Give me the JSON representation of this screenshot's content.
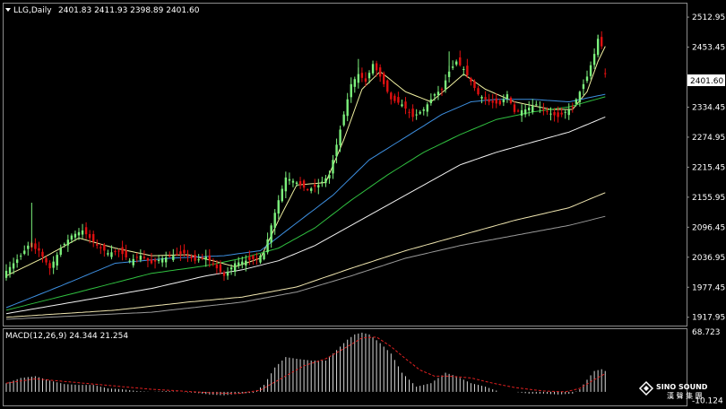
{
  "window": {
    "symbol_label": "LLG,Daily",
    "ohlc_label": "2401.83 2411.93 2398.89 2401.60"
  },
  "colors": {
    "background": "#000000",
    "frame": "#8c8c8c",
    "bull": "#7cf07c",
    "bear": "#e01010",
    "ma5": "#f0f0a0",
    "ma_blue": "#3d8fe0",
    "ma_green": "#30c040",
    "ma_white": "#f2f2f2",
    "ma_cream": "#f0e6b0",
    "ma_gray": "#9a9a9a",
    "macd_hist": "#d8d8d8",
    "macd_signal": "#e02020",
    "price_box_bg": "#ffffff",
    "price_box_fg": "#000000"
  },
  "icons": {
    "dropdown": "triangle-down-icon",
    "logo": "sino-sound-logo-icon"
  },
  "watermark": {
    "name": "SINO SOUND",
    "cn": "漢 聲 集 團"
  },
  "chart_data": [
    {
      "type": "candlestick",
      "title": "LLG,Daily",
      "ylim": [
        1905,
        2538
      ],
      "y_ticks": [
        "2512.95",
        "2453.45",
        "2334.45",
        "2274.95",
        "2215.45",
        "2155.95",
        "2096.45",
        "2036.95",
        "1977.45",
        "1917.95"
      ],
      "y_tick_values": [
        2512.95,
        2453.45,
        2334.45,
        2274.95,
        2215.45,
        2155.95,
        2096.45,
        2036.95,
        1977.45,
        1917.95
      ],
      "current_price": "2401.60",
      "current_price_value": 2401.6,
      "grid": false,
      "close_anchors": [
        [
          0,
          2010
        ],
        [
          4,
          2040
        ],
        [
          6,
          2060
        ],
        [
          9,
          2050
        ],
        [
          12,
          2015
        ],
        [
          15,
          2055
        ],
        [
          18,
          2080
        ],
        [
          21,
          2090
        ],
        [
          25,
          2060
        ],
        [
          28,
          2045
        ],
        [
          31,
          2050
        ],
        [
          34,
          2030
        ],
        [
          37,
          2040
        ],
        [
          40,
          2025
        ],
        [
          43,
          2035
        ],
        [
          46,
          2040
        ],
        [
          49,
          2045
        ],
        [
          52,
          2030
        ],
        [
          55,
          2038
        ],
        [
          58,
          2015
        ],
        [
          60,
          2000
        ],
        [
          63,
          2025
        ],
        [
          66,
          2030
        ],
        [
          69,
          2035
        ],
        [
          71,
          2045
        ],
        [
          73,
          2100
        ],
        [
          75,
          2150
        ],
        [
          77,
          2195
        ],
        [
          80,
          2185
        ],
        [
          83,
          2170
        ],
        [
          86,
          2180
        ],
        [
          89,
          2200
        ],
        [
          91,
          2260
        ],
        [
          93,
          2320
        ],
        [
          95,
          2380
        ],
        [
          97,
          2400
        ],
        [
          99,
          2385
        ],
        [
          101,
          2420
        ],
        [
          103,
          2395
        ],
        [
          106,
          2350
        ],
        [
          109,
          2340
        ],
        [
          112,
          2315
        ],
        [
          115,
          2330
        ],
        [
          118,
          2360
        ],
        [
          120,
          2370
        ],
        [
          122,
          2405
        ],
        [
          124,
          2425
        ],
        [
          126,
          2410
        ],
        [
          128,
          2385
        ],
        [
          130,
          2360
        ],
        [
          133,
          2345
        ],
        [
          136,
          2340
        ],
        [
          138,
          2360
        ],
        [
          140,
          2325
        ],
        [
          143,
          2330
        ],
        [
          146,
          2340
        ],
        [
          149,
          2325
        ],
        [
          152,
          2315
        ],
        [
          154,
          2325
        ],
        [
          156,
          2335
        ],
        [
          158,
          2365
        ],
        [
          160,
          2395
        ],
        [
          162,
          2440
        ],
        [
          163,
          2470
        ],
        [
          164,
          2455
        ],
        [
          165,
          2401.6
        ]
      ],
      "moving_averages": [
        {
          "key": "ma5",
          "anchors": [
            [
              0,
              2000
            ],
            [
              10,
              2035
            ],
            [
              20,
              2075
            ],
            [
              30,
              2055
            ],
            [
              40,
              2040
            ],
            [
              50,
              2042
            ],
            [
              58,
              2028
            ],
            [
              63,
              2018
            ],
            [
              70,
              2035
            ],
            [
              75,
              2110
            ],
            [
              80,
              2180
            ],
            [
              88,
              2185
            ],
            [
              93,
              2270
            ],
            [
              98,
              2370
            ],
            [
              103,
              2405
            ],
            [
              110,
              2365
            ],
            [
              117,
              2345
            ],
            [
              122,
              2375
            ],
            [
              126,
              2400
            ],
            [
              132,
              2370
            ],
            [
              140,
              2345
            ],
            [
              150,
              2330
            ],
            [
              156,
              2330
            ],
            [
              160,
              2365
            ],
            [
              163,
              2425
            ],
            [
              165,
              2455
            ]
          ]
        },
        {
          "key": "ma_blue",
          "anchors": [
            [
              0,
              1937
            ],
            [
              15,
              1980
            ],
            [
              30,
              2025
            ],
            [
              45,
              2035
            ],
            [
              60,
              2040
            ],
            [
              70,
              2050
            ],
            [
              80,
              2105
            ],
            [
              90,
              2160
            ],
            [
              100,
              2230
            ],
            [
              110,
              2275
            ],
            [
              120,
              2320
            ],
            [
              128,
              2345
            ],
            [
              135,
              2350
            ],
            [
              145,
              2350
            ],
            [
              155,
              2345
            ],
            [
              165,
              2360
            ]
          ]
        },
        {
          "key": "ma_green",
          "anchors": [
            [
              0,
              1932
            ],
            [
              20,
              1968
            ],
            [
              40,
              2005
            ],
            [
              55,
              2020
            ],
            [
              65,
              2035
            ],
            [
              75,
              2055
            ],
            [
              85,
              2095
            ],
            [
              95,
              2150
            ],
            [
              105,
              2200
            ],
            [
              115,
              2245
            ],
            [
              125,
              2280
            ],
            [
              135,
              2310
            ],
            [
              145,
              2325
            ],
            [
              155,
              2335
            ],
            [
              165,
              2355
            ]
          ]
        },
        {
          "key": "ma_white",
          "anchors": [
            [
              0,
              1925
            ],
            [
              20,
              1950
            ],
            [
              40,
              1975
            ],
            [
              55,
              2000
            ],
            [
              65,
              2012
            ],
            [
              75,
              2030
            ],
            [
              85,
              2060
            ],
            [
              95,
              2100
            ],
            [
              105,
              2140
            ],
            [
              115,
              2180
            ],
            [
              125,
              2220
            ],
            [
              135,
              2245
            ],
            [
              145,
              2265
            ],
            [
              155,
              2285
            ],
            [
              165,
              2315
            ]
          ]
        },
        {
          "key": "ma_cream",
          "anchors": [
            [
              0,
              1918
            ],
            [
              30,
              1932
            ],
            [
              50,
              1948
            ],
            [
              65,
              1958
            ],
            [
              80,
              1978
            ],
            [
              95,
              2015
            ],
            [
              110,
              2050
            ],
            [
              125,
              2080
            ],
            [
              140,
              2110
            ],
            [
              155,
              2135
            ],
            [
              165,
              2165
            ]
          ]
        },
        {
          "key": "ma_gray",
          "anchors": [
            [
              0,
              1914
            ],
            [
              40,
              1928
            ],
            [
              65,
              1948
            ],
            [
              80,
              1968
            ],
            [
              95,
              2000
            ],
            [
              110,
              2035
            ],
            [
              125,
              2060
            ],
            [
              140,
              2080
            ],
            [
              155,
              2100
            ],
            [
              165,
              2118
            ]
          ]
        }
      ]
    },
    {
      "type": "bar",
      "title": "MACD(12,26,9) 24.344 21.254",
      "ylim": [
        -13.5,
        71
      ],
      "y_ticks": [
        "68.723",
        "-10.124"
      ],
      "y_tick_values": [
        68.723,
        -10.124
      ],
      "histogram_anchors": [
        [
          0,
          10
        ],
        [
          4,
          16
        ],
        [
          8,
          18
        ],
        [
          12,
          13
        ],
        [
          16,
          9
        ],
        [
          20,
          8
        ],
        [
          24,
          8
        ],
        [
          28,
          4
        ],
        [
          32,
          3
        ],
        [
          36,
          1
        ],
        [
          40,
          0
        ],
        [
          44,
          1
        ],
        [
          48,
          0
        ],
        [
          52,
          -1
        ],
        [
          56,
          -3
        ],
        [
          60,
          -4
        ],
        [
          64,
          -2
        ],
        [
          68,
          -1
        ],
        [
          71,
          8
        ],
        [
          74,
          28
        ],
        [
          77,
          40
        ],
        [
          80,
          38
        ],
        [
          84,
          36
        ],
        [
          88,
          36
        ],
        [
          91,
          48
        ],
        [
          94,
          60
        ],
        [
          96,
          66
        ],
        [
          98,
          68
        ],
        [
          100,
          66
        ],
        [
          103,
          56
        ],
        [
          106,
          44
        ],
        [
          109,
          22
        ],
        [
          113,
          6
        ],
        [
          117,
          10
        ],
        [
          121,
          22
        ],
        [
          124,
          18
        ],
        [
          128,
          10
        ],
        [
          132,
          6
        ],
        [
          136,
          0
        ],
        [
          140,
          0
        ],
        [
          144,
          -2
        ],
        [
          148,
          -2
        ],
        [
          152,
          -3
        ],
        [
          156,
          -2
        ],
        [
          158,
          3
        ],
        [
          160,
          14
        ],
        [
          162,
          24
        ],
        [
          164,
          26
        ],
        [
          165,
          24
        ]
      ],
      "signal_anchors": [
        [
          0,
          10
        ],
        [
          8,
          15
        ],
        [
          16,
          12
        ],
        [
          24,
          9
        ],
        [
          32,
          6
        ],
        [
          40,
          3
        ],
        [
          48,
          1
        ],
        [
          56,
          -1
        ],
        [
          64,
          -2
        ],
        [
          70,
          2
        ],
        [
          76,
          16
        ],
        [
          82,
          30
        ],
        [
          88,
          38
        ],
        [
          94,
          52
        ],
        [
          98,
          62
        ],
        [
          102,
          63
        ],
        [
          106,
          52
        ],
        [
          110,
          38
        ],
        [
          114,
          25
        ],
        [
          118,
          18
        ],
        [
          122,
          18
        ],
        [
          128,
          16
        ],
        [
          134,
          10
        ],
        [
          140,
          5
        ],
        [
          148,
          1
        ],
        [
          154,
          0
        ],
        [
          158,
          4
        ],
        [
          162,
          14
        ],
        [
          165,
          21
        ]
      ]
    }
  ]
}
